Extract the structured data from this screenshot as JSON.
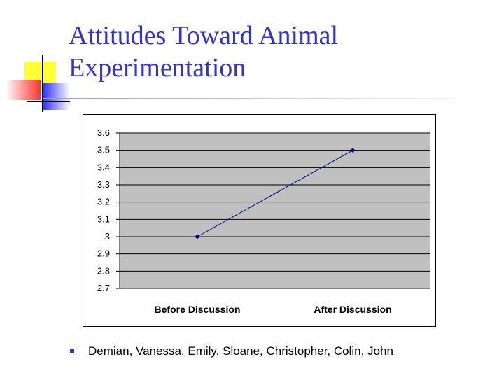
{
  "slide": {
    "title_line1": "Attitudes Toward Animal",
    "title_line2": "Experimentation",
    "bullet_text": "Demian, Vanessa, Emily, Sloane, Christopher, Colin, John",
    "colors": {
      "title": "#3333cc",
      "deco_yellow": "#ffff00",
      "deco_red": "#ff3333",
      "deco_blue": "#3333ff",
      "plot_area": "#c0c0c0",
      "line": "#000080"
    }
  },
  "chart_data": {
    "type": "line",
    "categories": [
      "Before Discussion",
      "After Discussion"
    ],
    "series": [
      {
        "values": [
          3.0,
          3.5
        ]
      }
    ],
    "y_ticks": [
      "3.6",
      "3.5",
      "3.4",
      "3.3",
      "3.2",
      "3.1",
      "3",
      "2.9",
      "2.8",
      "2.7"
    ],
    "ylim": [
      2.7,
      3.6
    ],
    "grid": true,
    "legend": "none"
  }
}
